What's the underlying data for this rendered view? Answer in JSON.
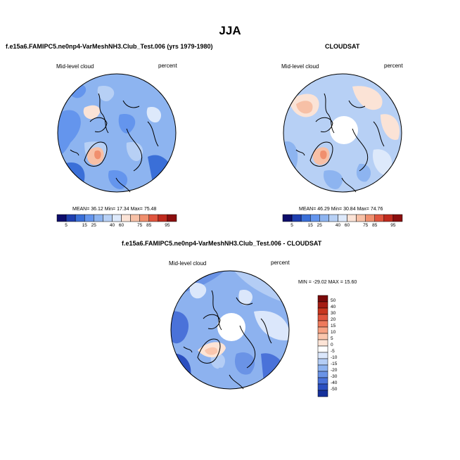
{
  "season": "JJA",
  "panels": [
    {
      "id": "model",
      "title": "f.e15a6.FAMIPC5.ne0np4-VarMeshNH3.Club_Test.006 (yrs 1979-1980)",
      "variable": "Mid-level cloud",
      "units": "percent",
      "stats": {
        "mean_label": "MEAN=",
        "mean": "36.12",
        "min_label": "Min=",
        "min": "17.34",
        "max_label": "Max=",
        "max": "75.48"
      }
    },
    {
      "id": "obs",
      "title": "CLOUDSAT",
      "variable": "Mid-level cloud",
      "units": "percent",
      "stats": {
        "mean_label": "MEAN=",
        "mean": "46.29",
        "min_label": "Min=",
        "min": "30.84",
        "max_label": "Max=",
        "max": "74.76"
      }
    },
    {
      "id": "diff",
      "title": "f.e15a6.FAMIPC5.ne0np4-VarMeshNH3.Club_Test.006 - CLOUDSAT",
      "variable": "Mid-level cloud",
      "units": "percent",
      "stats_text": "MIN = -29.02 MAX = 15.60"
    }
  ],
  "abs_colorbar": {
    "labels": [
      "5",
      "15",
      "25",
      "40",
      "60",
      "75",
      "85",
      "95"
    ],
    "colors": [
      "#0d0d6b",
      "#1f3fb0",
      "#3a6fd8",
      "#6495ed",
      "#8db4f0",
      "#b7d0f5",
      "#dde9fb",
      "#fbe3d6",
      "#f7c0a6",
      "#f08f6e",
      "#e0553e",
      "#c02a1e",
      "#8b0e0e"
    ]
  },
  "diff_colorbar": {
    "labels": [
      "50",
      "40",
      "30",
      "20",
      "15",
      "10",
      "5",
      "0",
      "-5",
      "-10",
      "-15",
      "-20",
      "-30",
      "-40",
      "-50"
    ],
    "colors": [
      "#7a0a0a",
      "#a51d14",
      "#c8361f",
      "#e0553e",
      "#ee7a5c",
      "#f6a283",
      "#fbc7ae",
      "#fde4d6",
      "#ffffff",
      "#dbe7fb",
      "#b4cdf5",
      "#8db2ef",
      "#6a93e6",
      "#4a72d9",
      "#2b4fc0",
      "#15309a"
    ]
  }
}
